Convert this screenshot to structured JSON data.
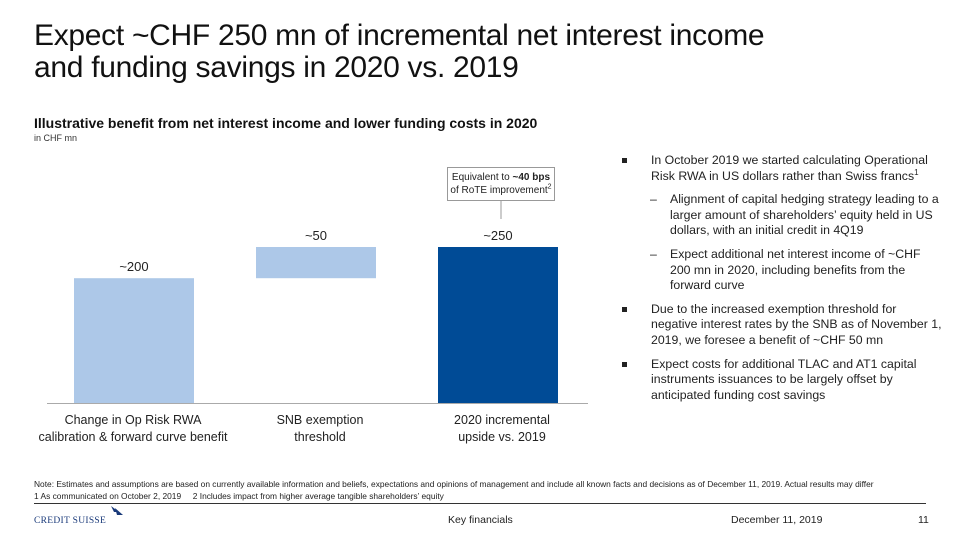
{
  "slide": {
    "title_lines": [
      "Expect ~CHF 250 mn of incremental net interest income",
      "and funding savings in 2020 vs. 2019"
    ]
  },
  "chart_data": {
    "type": "bar",
    "subtype": "waterfall",
    "title": "Illustrative benefit from net interest income and lower funding costs in 2020",
    "unit": "in CHF mn",
    "categories": [
      [
        "Change in Op Risk RWA",
        "calibration & forward curve benefit"
      ],
      [
        "SNB exemption",
        "threshold"
      ],
      [
        "2020 incremental",
        "upside vs. 2019"
      ]
    ],
    "values": [
      200,
      50,
      250
    ],
    "bases": [
      0,
      200,
      0
    ],
    "data_labels": [
      "~200",
      "~50",
      "~250"
    ],
    "bar_kinds": [
      "increment",
      "increment",
      "total"
    ],
    "colors": {
      "increment": "#adc8e8",
      "total": "#004b96",
      "axis": "#aaaaaa"
    },
    "ylim": [
      0,
      250
    ],
    "grid": false,
    "callout": {
      "text_pre": "Equivalent to ",
      "text_bold": "~40 bps",
      "text_line2": "of RoTE improvement",
      "footnote_ref": "2",
      "attached_to": "2020 incremental upside vs. 2019"
    }
  },
  "bullets": [
    {
      "level": 1,
      "text": "In October 2019 we started calculating Operational Risk RWA in US dollars rather than Swiss francs",
      "sup": "1"
    },
    {
      "level": 2,
      "text": "Alignment of capital hedging strategy leading to a larger amount of shareholders’ equity held in US dollars, with an initial credit in 4Q19"
    },
    {
      "level": 2,
      "text": "Expect additional net interest income of ~CHF 200 mn in 2020, including benefits from the forward curve"
    },
    {
      "level": 1,
      "text": "Due to the increased exemption threshold for negative interest rates by the SNB as of November 1, 2019, we foresee a benefit of ~CHF 50 mn"
    },
    {
      "level": 1,
      "text": "Expect costs for additional TLAC and AT1 capital instruments issuances to be largely offset by anticipated funding cost savings"
    }
  ],
  "notes": {
    "line1": "Note: Estimates and assumptions are based on currently available information and beliefs, expectations and opinions of management and include all known facts and decisions as of December 11, 2019. Actual results may differ",
    "footnote1": "1 As communicated on October 2, 2019",
    "footnote2": "2 Includes impact from higher average tangible shareholders’ equity"
  },
  "footer": {
    "logo_text": "CREDIT SUISSE",
    "section": "Key financials",
    "date": "December 11, 2019",
    "page": "11"
  }
}
